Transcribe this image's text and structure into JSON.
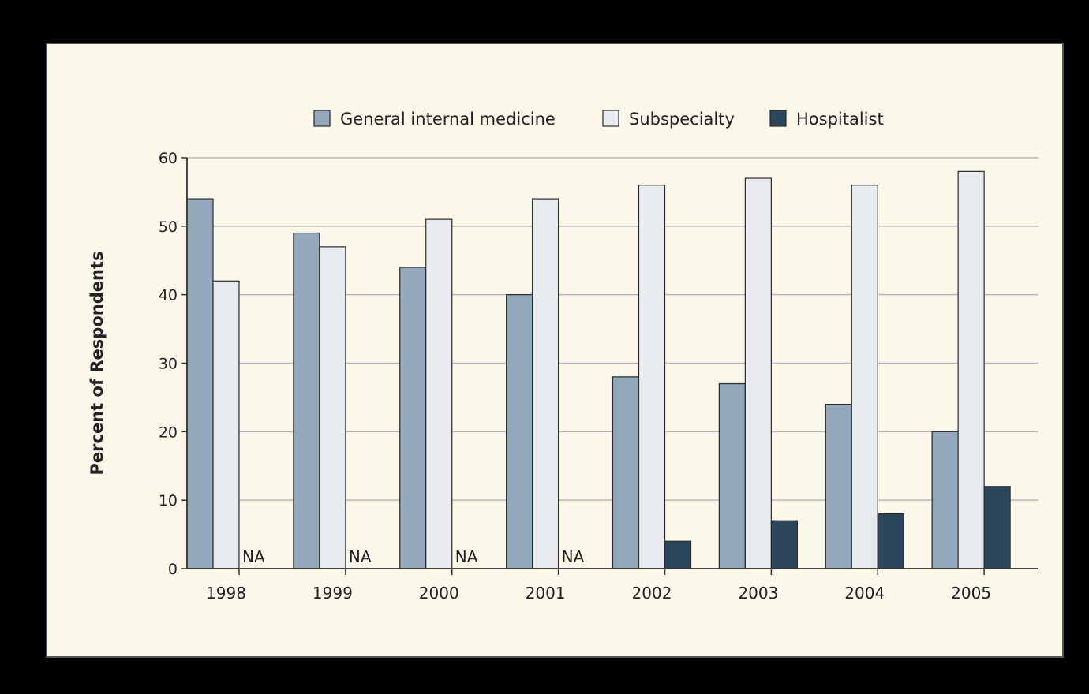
{
  "colors": {
    "frame_background": "#fbf8ea",
    "frame_border": "#555555",
    "gridline": "#b8b8b8",
    "axis": "#333333",
    "bar_outline": "#2a2a2a",
    "general_internal_medicine": "#94a8bb",
    "subspecialty": "#e9ecef",
    "hospitalist": "#2b475e"
  },
  "chart_data": {
    "type": "bar",
    "categories": [
      "1998",
      "1999",
      "2000",
      "2001",
      "2002",
      "2003",
      "2004",
      "2005"
    ],
    "series": [
      {
        "name": "General internal medicine",
        "color": "#94a8bb",
        "values": [
          54,
          49,
          44,
          40,
          28,
          27,
          24,
          20
        ]
      },
      {
        "name": "Subspecialty",
        "color": "#e9ecef",
        "values": [
          42,
          47,
          51,
          54,
          56,
          57,
          56,
          58
        ]
      },
      {
        "name": "Hospitalist",
        "color": "#2b475e",
        "values": [
          null,
          null,
          null,
          null,
          4,
          7,
          8,
          12
        ]
      }
    ],
    "missing_label": "NA",
    "title": "",
    "xlabel": "",
    "ylabel": "Percent of Respondents",
    "ylim": [
      0,
      60
    ],
    "yticks": [
      0,
      10,
      20,
      30,
      40,
      50,
      60
    ],
    "grid": true,
    "legend_position": "top-center"
  }
}
